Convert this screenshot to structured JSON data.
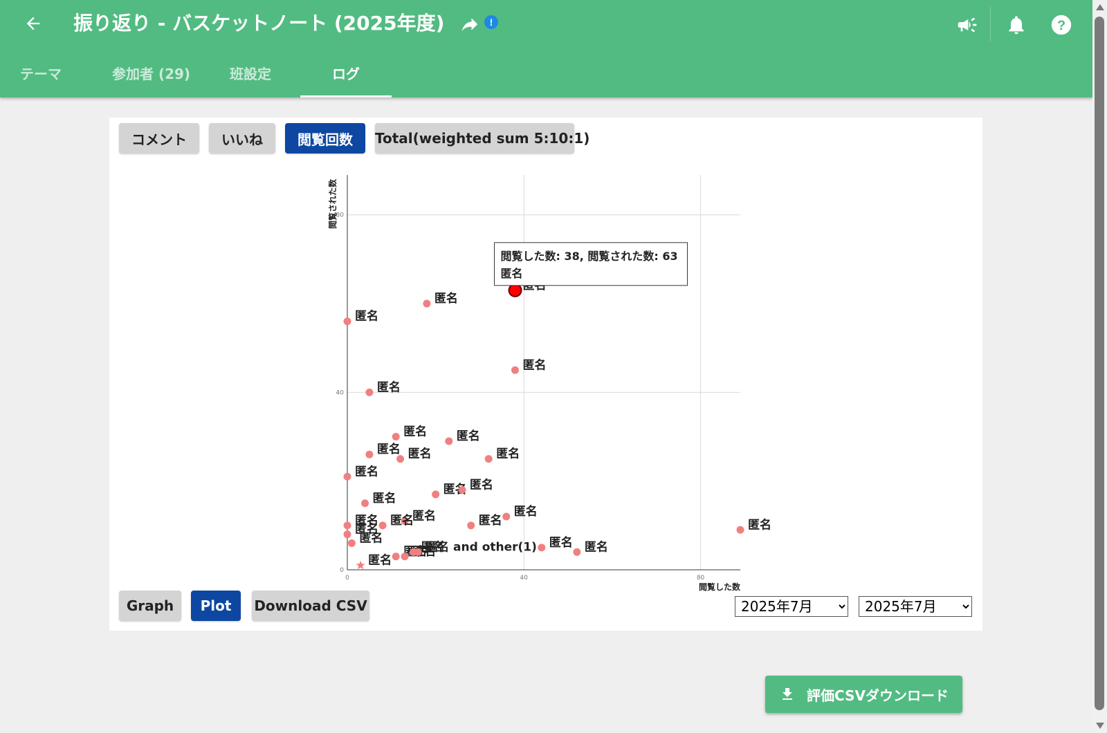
{
  "header": {
    "back_icon": "arrow-left-icon",
    "title": "振り返り - バスケットノート (2025年度)",
    "share_icon": "share-icon",
    "alert_badge": "!",
    "icons": [
      "megaphone-icon",
      "bell-icon",
      "help-icon"
    ]
  },
  "tabs": [
    {
      "label": "テーマ"
    },
    {
      "label": "参加者 (29)"
    },
    {
      "label": "班設定"
    },
    {
      "label": "ログ",
      "active": true
    }
  ],
  "metric_buttons": [
    {
      "label": "コメント",
      "active": false
    },
    {
      "label": "いいね",
      "active": false
    },
    {
      "label": "閲覧回数",
      "active": true
    },
    {
      "label": "Total(weighted sum 5:10:1)",
      "active": false
    }
  ],
  "view_buttons": [
    {
      "label": "Graph",
      "active": false
    },
    {
      "label": "Plot",
      "active": true
    },
    {
      "label": "Download CSV",
      "active": false
    }
  ],
  "month_from": "2025年7月",
  "month_to": "2025年7月",
  "download_eval_label": "評価CSVダウンロード",
  "colors": {
    "header": "#52bb82",
    "primary": "#0d47a1",
    "point": "#f08080",
    "highlight": "#ff0000"
  },
  "chart_data": {
    "type": "scatter",
    "xlabel": "閲覧した数",
    "ylabel": "閲覧された数",
    "xlim": [
      0,
      89
    ],
    "ylim": [
      0,
      89
    ],
    "xticks": [
      0,
      40,
      80
    ],
    "yticks": [
      0,
      40,
      80
    ],
    "grid": true,
    "points": [
      {
        "x": 38,
        "y": 63,
        "label": "匿名",
        "highlight": true
      },
      {
        "x": 18,
        "y": 60,
        "label": "匿名"
      },
      {
        "x": 0,
        "y": 56,
        "label": "匿名"
      },
      {
        "x": 38,
        "y": 45,
        "label": "匿名"
      },
      {
        "x": 5,
        "y": 40,
        "label": "匿名"
      },
      {
        "x": 11,
        "y": 30,
        "label": "匿名"
      },
      {
        "x": 23,
        "y": 29,
        "label": "匿名"
      },
      {
        "x": 5,
        "y": 26,
        "label": "匿名"
      },
      {
        "x": 12,
        "y": 25,
        "label": "匿名"
      },
      {
        "x": 32,
        "y": 25,
        "label": "匿名"
      },
      {
        "x": 0,
        "y": 21,
        "label": "匿名"
      },
      {
        "x": 20,
        "y": 17,
        "label": "匿名"
      },
      {
        "x": 26,
        "y": 18,
        "label": "匿名"
      },
      {
        "x": 4,
        "y": 15,
        "label": "匿名"
      },
      {
        "x": 36,
        "y": 12,
        "label": "匿名"
      },
      {
        "x": 13,
        "y": 11,
        "label": "匿名"
      },
      {
        "x": 8,
        "y": 10,
        "label": "匿名"
      },
      {
        "x": 28,
        "y": 10,
        "label": "匿名"
      },
      {
        "x": 0,
        "y": 10,
        "label": "匿名"
      },
      {
        "x": 0,
        "y": 8,
        "label": "匿名"
      },
      {
        "x": 1,
        "y": 6,
        "label": "匿名"
      },
      {
        "x": 89,
        "y": 9,
        "label": "匿名"
      },
      {
        "x": 44,
        "y": 5,
        "label": "匿名"
      },
      {
        "x": 52,
        "y": 4,
        "label": "匿名"
      },
      {
        "x": 11,
        "y": 3,
        "label": "匿名"
      },
      {
        "x": 13,
        "y": 3,
        "label": "匿名"
      },
      {
        "x": 15,
        "y": 4,
        "label": "匿名"
      },
      {
        "x": 16,
        "y": 4,
        "label": "匿名 and other(1)"
      },
      {
        "x": 3,
        "y": 1,
        "label": "匿名",
        "marker": "star"
      }
    ],
    "tooltip": {
      "line1": "閲覧した数: 38, 閲覧された数: 63",
      "line2": "匿名"
    }
  }
}
